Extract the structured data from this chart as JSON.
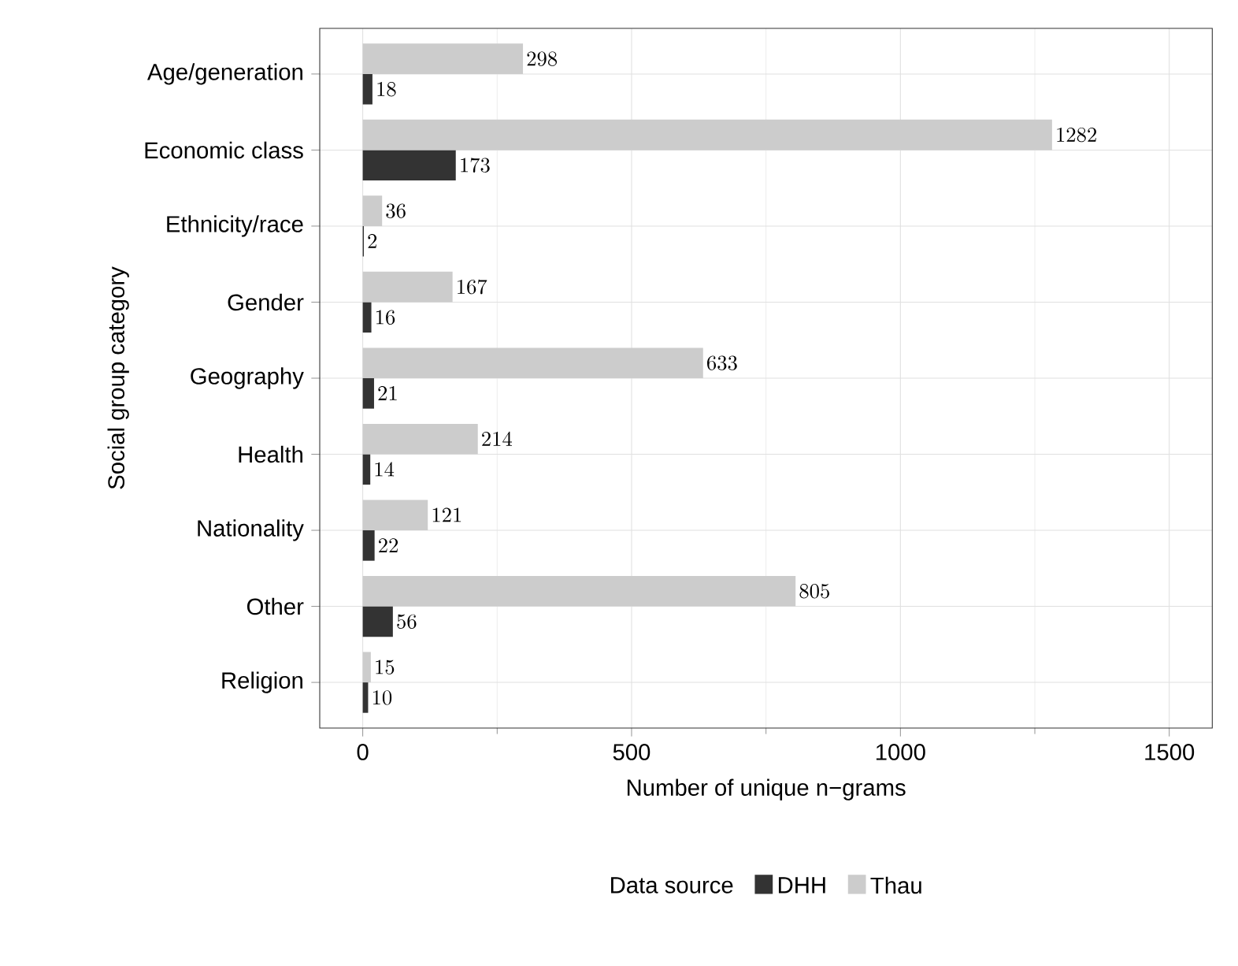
{
  "chart_data": {
    "type": "bar",
    "orientation": "horizontal",
    "xlabel": "Number of unique n−grams",
    "ylabel": "Social group category",
    "legend_title": "Data source",
    "categories": [
      "Age/generation",
      "Economic class",
      "Ethnicity/race",
      "Gender",
      "Geography",
      "Health",
      "Nationality",
      "Other",
      "Religion"
    ],
    "series": [
      {
        "name": "DHH",
        "color": "#333333",
        "values": [
          18,
          173,
          2,
          16,
          21,
          14,
          22,
          56,
          10
        ]
      },
      {
        "name": "Thau",
        "color": "#cccccc",
        "values": [
          298,
          1282,
          36,
          167,
          633,
          214,
          121,
          805,
          15
        ]
      }
    ],
    "xlim": [
      -80,
      1580
    ],
    "xticks": [
      0,
      500,
      1000,
      1500
    ],
    "grid": true,
    "legend": "bottom",
    "data_labels": true
  }
}
